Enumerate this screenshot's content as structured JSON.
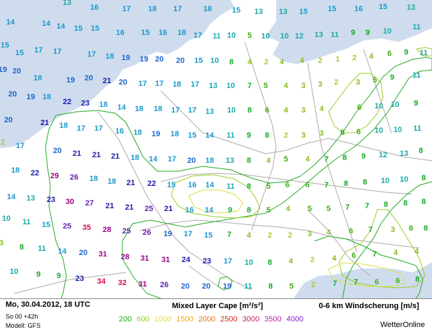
{
  "header": {
    "date": "Mo, 30.04.2012, 18 UTC",
    "run": "So 00 +42h",
    "model": "Modell: GFS",
    "title_cape": "Mixed Layer Cape [m²/s²]",
    "title_wind": "0-6 km Windscherung [m/s]",
    "brand": "WetterOnline"
  },
  "legend": [
    {
      "label": "200",
      "color": "#22aa22"
    },
    {
      "label": "600",
      "color": "#99cc22"
    },
    {
      "label": "1000",
      "color": "#dddd44"
    },
    {
      "label": "1500",
      "color": "#eeaa22"
    },
    {
      "label": "2000",
      "color": "#ee7722"
    },
    {
      "label": "2500",
      "color": "#dd2222"
    },
    {
      "label": "3000",
      "color": "#cc2266"
    },
    {
      "label": "3500",
      "color": "#bb22aa"
    },
    {
      "label": "4000",
      "color": "#8822cc"
    }
  ],
  "colors": {
    "c11": "#1aa9a9",
    "c14": "#1a99cc",
    "c19": "#1a66cc",
    "c21": "#1a1aaa",
    "c26": "#6622aa",
    "c29": "#990088",
    "c35": "#cc1144",
    "c7": "#11aa22",
    "c5": "#44aa11",
    "c3": "#88bb22",
    "c1": "#aacc33",
    "water": "#cfdcee",
    "border": "#aaaaaa",
    "contour200": "#22aa22",
    "contour600": "#99cc22",
    "contour1000": "#dddd44"
  },
  "wind_values": [
    [
      "13",
      96,
      3
    ],
    [
      "16",
      135,
      10
    ],
    [
      "17",
      181,
      12
    ],
    [
      "18",
      218,
      12
    ],
    [
      "17",
      254,
      12
    ],
    [
      "18",
      297,
      12
    ],
    [
      "15",
      338,
      14
    ],
    [
      "13",
      370,
      16
    ],
    [
      "13",
      405,
      16
    ],
    [
      "15",
      434,
      16
    ],
    [
      "15",
      475,
      12
    ],
    [
      "16",
      513,
      12
    ],
    [
      "15",
      548,
      9
    ],
    [
      "13",
      588,
      10
    ],
    [
      "14",
      15,
      31
    ],
    [
      "14",
      66,
      33
    ],
    [
      "14",
      87,
      37
    ],
    [
      "15",
      112,
      40
    ],
    [
      "15",
      136,
      40
    ],
    [
      "16",
      172,
      46
    ],
    [
      "15",
      208,
      46
    ],
    [
      "16",
      233,
      46
    ],
    [
      "18",
      260,
      46
    ],
    [
      "17",
      283,
      50
    ],
    [
      "11",
      310,
      51
    ],
    [
      "10",
      331,
      50
    ],
    [
      "5",
      357,
      50
    ],
    [
      "10",
      380,
      51
    ],
    [
      "10",
      407,
      51
    ],
    [
      "12",
      428,
      51
    ],
    [
      "13",
      456,
      49
    ],
    [
      "11",
      479,
      49
    ],
    [
      "9",
      505,
      46
    ],
    [
      "9",
      526,
      46
    ],
    [
      "10",
      554,
      44
    ],
    [
      "11",
      596,
      38
    ],
    [
      "15",
      7,
      64
    ],
    [
      "15",
      28,
      75
    ],
    [
      "17",
      55,
      71
    ],
    [
      "17",
      82,
      73
    ],
    [
      "17",
      131,
      77
    ],
    [
      "18",
      157,
      80
    ],
    [
      "19",
      180,
      82
    ],
    [
      "19",
      206,
      84
    ],
    [
      "20",
      228,
      84
    ],
    [
      "20",
      258,
      86
    ],
    [
      "15",
      284,
      86
    ],
    [
      "10",
      307,
      86
    ],
    [
      "8",
      331,
      88
    ],
    [
      "4",
      357,
      88
    ],
    [
      "2",
      381,
      88
    ],
    [
      "4",
      403,
      88
    ],
    [
      "4",
      432,
      86
    ],
    [
      "2",
      458,
      86
    ],
    [
      "1",
      483,
      84
    ],
    [
      "2",
      507,
      82
    ],
    [
      "4",
      531,
      80
    ],
    [
      "6",
      557,
      76
    ],
    [
      "9",
      581,
      74
    ],
    [
      "11",
      606,
      75
    ],
    [
      "19",
      4,
      99
    ],
    [
      "20",
      24,
      101
    ],
    [
      "18",
      54,
      111
    ],
    [
      "19",
      101,
      114
    ],
    [
      "20",
      127,
      111
    ],
    [
      "21",
      153,
      115
    ],
    [
      "20",
      176,
      117
    ],
    [
      "17",
      204,
      119
    ],
    [
      "17",
      228,
      119
    ],
    [
      "18",
      253,
      120
    ],
    [
      "17",
      279,
      120
    ],
    [
      "13",
      305,
      122
    ],
    [
      "10",
      330,
      122
    ],
    [
      "7",
      357,
      122
    ],
    [
      "5",
      380,
      122
    ],
    [
      "4",
      409,
      122
    ],
    [
      "3",
      434,
      122
    ],
    [
      "3",
      458,
      120
    ],
    [
      "2",
      481,
      117
    ],
    [
      "3",
      512,
      117
    ],
    [
      "5",
      536,
      114
    ],
    [
      "9",
      561,
      110
    ],
    [
      "11",
      596,
      107
    ],
    [
      "20",
      18,
      134
    ],
    [
      "19",
      44,
      138
    ],
    [
      "18",
      67,
      138
    ],
    [
      "22",
      96,
      145
    ],
    [
      "23",
      122,
      147
    ],
    [
      "18",
      148,
      149
    ],
    [
      "14",
      174,
      153
    ],
    [
      "18",
      199,
      155
    ],
    [
      "18",
      226,
      155
    ],
    [
      "17",
      251,
      157
    ],
    [
      "17",
      275,
      157
    ],
    [
      "13",
      300,
      159
    ],
    [
      "10",
      331,
      157
    ],
    [
      "8",
      357,
      157
    ],
    [
      "6",
      382,
      157
    ],
    [
      "4",
      409,
      157
    ],
    [
      "3",
      434,
      157
    ],
    [
      "4",
      460,
      155
    ],
    [
      "6",
      514,
      153
    ],
    [
      "10",
      542,
      151
    ],
    [
      "10",
      565,
      149
    ],
    [
      "9",
      595,
      147
    ],
    [
      "20",
      12,
      171
    ],
    [
      "21",
      64,
      175
    ],
    [
      "18",
      91,
      179
    ],
    [
      "17",
      116,
      183
    ],
    [
      "17",
      141,
      183
    ],
    [
      "16",
      171,
      187
    ],
    [
      "18",
      197,
      189
    ],
    [
      "19",
      223,
      191
    ],
    [
      "18",
      250,
      191
    ],
    [
      "15",
      275,
      193
    ],
    [
      "14",
      300,
      193
    ],
    [
      "11",
      330,
      193
    ],
    [
      "9",
      356,
      193
    ],
    [
      "8",
      382,
      193
    ],
    [
      "2",
      409,
      193
    ],
    [
      "3",
      434,
      193
    ],
    [
      "3",
      460,
      190
    ],
    [
      "8",
      490,
      189
    ],
    [
      "6",
      513,
      188
    ],
    [
      "10",
      542,
      186
    ],
    [
      "10",
      569,
      185
    ],
    [
      "11",
      597,
      183
    ],
    [
      "2",
      4,
      203
    ],
    [
      "17",
      29,
      208
    ],
    [
      "20",
      82,
      215
    ],
    [
      "21",
      110,
      219
    ],
    [
      "21",
      138,
      221
    ],
    [
      "21",
      165,
      223
    ],
    [
      "18",
      193,
      225
    ],
    [
      "14",
      219,
      227
    ],
    [
      "17",
      246,
      227
    ],
    [
      "20",
      274,
      229
    ],
    [
      "18",
      300,
      229
    ],
    [
      "13",
      329,
      229
    ],
    [
      "8",
      356,
      229
    ],
    [
      "4",
      384,
      229
    ],
    [
      "5",
      409,
      227
    ],
    [
      "4",
      440,
      227
    ],
    [
      "7",
      467,
      227
    ],
    [
      "8",
      493,
      225
    ],
    [
      "9",
      520,
      223
    ],
    [
      "12",
      548,
      221
    ],
    [
      "13",
      578,
      219
    ],
    [
      "8",
      602,
      215
    ],
    [
      "18",
      22,
      243
    ],
    [
      "22",
      50,
      247
    ],
    [
      "29",
      78,
      251
    ],
    [
      "26",
      106,
      253
    ],
    [
      "18",
      134,
      255
    ],
    [
      "18",
      160,
      259
    ],
    [
      "21",
      187,
      261
    ],
    [
      "22",
      217,
      262
    ],
    [
      "15",
      245,
      264
    ],
    [
      "16",
      275,
      264
    ],
    [
      "14",
      300,
      264
    ],
    [
      "11",
      330,
      266
    ],
    [
      "8",
      356,
      266
    ],
    [
      "5",
      384,
      266
    ],
    [
      "6",
      411,
      264
    ],
    [
      "6",
      440,
      264
    ],
    [
      "7",
      467,
      264
    ],
    [
      "8",
      495,
      262
    ],
    [
      "8",
      522,
      260
    ],
    [
      "10",
      551,
      258
    ],
    [
      "10",
      578,
      256
    ],
    [
      "8",
      606,
      254
    ],
    [
      "14",
      16,
      281
    ],
    [
      "13",
      44,
      283
    ],
    [
      "23",
      73,
      285
    ],
    [
      "30",
      100,
      288
    ],
    [
      "27",
      128,
      290
    ],
    [
      "21",
      157,
      294
    ],
    [
      "21",
      185,
      296
    ],
    [
      "25",
      213,
      298
    ],
    [
      "21",
      241,
      298
    ],
    [
      "16",
      271,
      300
    ],
    [
      "14",
      299,
      300
    ],
    [
      "9",
      329,
      300
    ],
    [
      "8",
      356,
      300
    ],
    [
      "5",
      384,
      300
    ],
    [
      "4",
      412,
      298
    ],
    [
      "5",
      443,
      298
    ],
    [
      "5",
      470,
      298
    ],
    [
      "7",
      497,
      296
    ],
    [
      "7",
      525,
      294
    ],
    [
      "8",
      552,
      292
    ],
    [
      "8",
      580,
      290
    ],
    [
      "8",
      606,
      288
    ],
    [
      "10",
      9,
      312
    ],
    [
      "11",
      38,
      317
    ],
    [
      "15",
      66,
      321
    ],
    [
      "25",
      96,
      323
    ],
    [
      "35",
      124,
      325
    ],
    [
      "28",
      153,
      328
    ],
    [
      "25",
      181,
      330
    ],
    [
      "26",
      210,
      332
    ],
    [
      "19",
      240,
      334
    ],
    [
      "17",
      269,
      334
    ],
    [
      "15",
      298,
      336
    ],
    [
      "7",
      328,
      335
    ],
    [
      "4",
      356,
      336
    ],
    [
      "2",
      386,
      336
    ],
    [
      "2",
      415,
      336
    ],
    [
      "3",
      443,
      334
    ],
    [
      "4",
      470,
      332
    ],
    [
      "6",
      502,
      330
    ],
    [
      "7",
      530,
      328
    ],
    [
      "3",
      562,
      328
    ],
    [
      "6",
      588,
      326
    ],
    [
      "8",
      609,
      326
    ],
    [
      "3",
      2,
      347
    ],
    [
      "8",
      31,
      353
    ],
    [
      "11",
      60,
      355
    ],
    [
      "14",
      89,
      359
    ],
    [
      "20",
      119,
      361
    ],
    [
      "31",
      147,
      363
    ],
    [
      "28",
      179,
      367
    ],
    [
      "31",
      207,
      369
    ],
    [
      "31",
      237,
      371
    ],
    [
      "24",
      266,
      371
    ],
    [
      "23",
      296,
      373
    ],
    [
      "17",
      326,
      373
    ],
    [
      "10",
      356,
      375
    ],
    [
      "8",
      386,
      375
    ],
    [
      "4",
      416,
      373
    ],
    [
      "2",
      447,
      371
    ],
    [
      "4",
      478,
      369
    ],
    [
      "6",
      506,
      365
    ],
    [
      "7",
      536,
      363
    ],
    [
      "4",
      566,
      361
    ],
    [
      "4",
      596,
      359
    ],
    [
      "10",
      20,
      388
    ],
    [
      "9",
      55,
      392
    ],
    [
      "9",
      84,
      394
    ],
    [
      "23",
      114,
      398
    ],
    [
      "34",
      145,
      402
    ],
    [
      "32",
      175,
      404
    ],
    [
      "31",
      204,
      406
    ],
    [
      "26",
      235,
      407
    ],
    [
      "20",
      265,
      409
    ],
    [
      "20",
      295,
      409
    ],
    [
      "19",
      325,
      409
    ],
    [
      "11",
      355,
      409
    ],
    [
      "8",
      387,
      409
    ],
    [
      "5",
      417,
      409
    ],
    [
      "2",
      448,
      407
    ],
    [
      "7",
      479,
      405
    ],
    [
      "7",
      509,
      403
    ],
    [
      "6",
      539,
      403
    ],
    [
      "6",
      569,
      401
    ],
    [
      "8",
      597,
      399
    ]
  ]
}
